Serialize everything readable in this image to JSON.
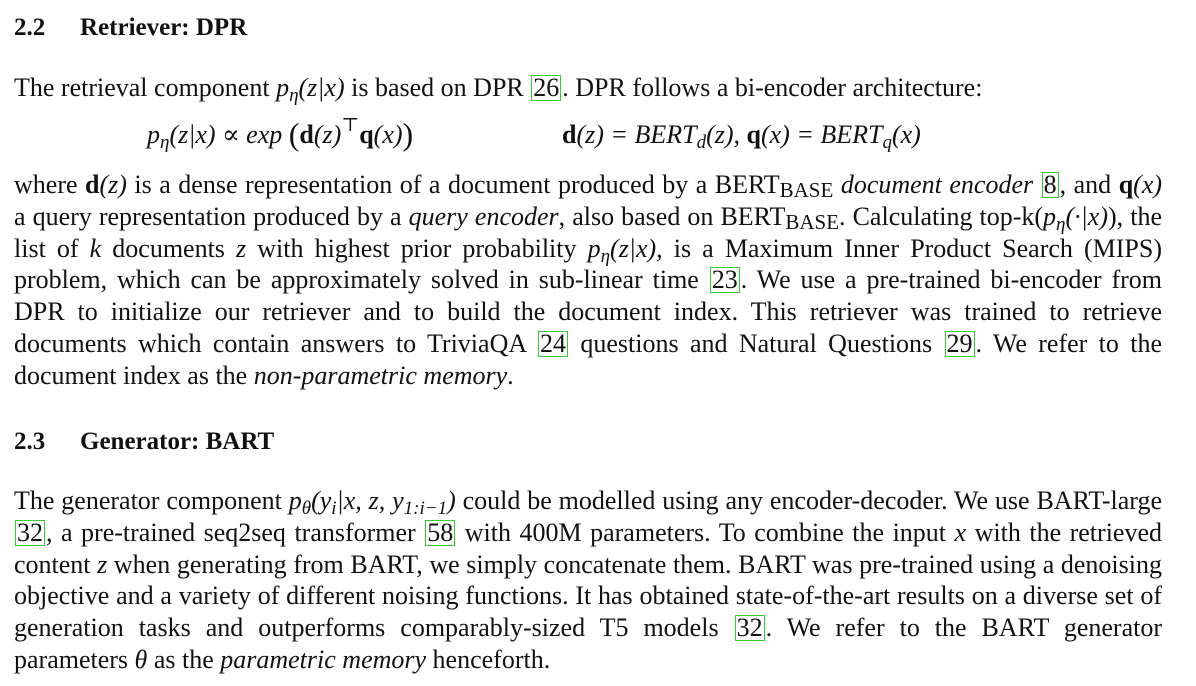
{
  "section_2_2": {
    "number": "2.2",
    "title": "Retriever: DPR"
  },
  "section_2_3": {
    "number": "2.3",
    "title": "Generator: BART"
  },
  "citations": {
    "c26": "26",
    "c8": "8",
    "c23": "23",
    "c24": "24",
    "c29": "29",
    "c32": "32",
    "c58": "58"
  },
  "p1": {
    "t1": "The retrieval component ",
    "t2": " is based on DPR ",
    "t3": ". DPR follows a bi-encoder architecture:"
  },
  "eq": {
    "left_func": "p",
    "left_sub": "η",
    "left_args": "(z|x) ∝ exp ",
    "d": "d",
    "dz": "(z)",
    "top": "⊤",
    "q": "q",
    "qx": "(x)",
    "right_d": "d",
    "right_dz": "(z) = BERT",
    "right_dsub": "d",
    "right_mid": "(z),   ",
    "right_q": "q",
    "right_qx": "(x) = BERT",
    "right_qsub": "q",
    "right_end": "(x)"
  },
  "p2": {
    "t1": "where ",
    "t2": " is a dense representation of a document produced by a BERT",
    "base1": "BASE",
    "doc_enc": "document encoder",
    "t3": ", and ",
    "t4": " a query representation produced by a ",
    "query_enc": "query encoder",
    "t5": ", also based on BERT",
    "base2": "BASE",
    "t6": ". Calculating top-k(",
    "t7": "), the list of ",
    "k": "k",
    "t8": " documents ",
    "z": "z",
    "t9": " with highest prior probability ",
    "t10": ", is a Maximum Inner Product Search (MIPS) problem, which can be approximately solved in sub-linear time ",
    "t11": ". We use a pre-trained bi-encoder from DPR to initialize our retriever and to build the document index. This retriever was trained to retrieve documents which contain answers to TriviaQA ",
    "t12": " questions and Natural Questions ",
    "t13": ". We refer to the document index as the ",
    "np_mem": "non-parametric memory",
    "t14": "."
  },
  "p3": {
    "t1": "The generator component ",
    "t2": " could be modelled using any encoder-decoder. We use BART-large ",
    "t3": ", a pre-trained seq2seq transformer ",
    "t4": " with 400M parameters. To combine the input ",
    "x": "x",
    "t5": " with the retrieved content ",
    "z": "z",
    "t6": " when generating from BART, we simply concatenate them. BART was pre-trained using a denoising objective and a variety of different noising functions. It has obtained state-of-the-art results on a diverse set of generation tasks and outperforms comparably-sized T5 models ",
    "t7": ". We refer to the BART generator parameters ",
    "theta": "θ",
    "t8": " as the ",
    "p_mem": "parametric memory",
    "t9": " henceforth."
  },
  "math": {
    "p": "p",
    "eta": "η",
    "zx": "(z|x)",
    "dotx": "(·|x)",
    "theta": "θ",
    "yi": "(y",
    "i": "i",
    "gen_args": "|x, z, y",
    "range": "1:i−1",
    "close": ")",
    "d": "d",
    "q": "q",
    "z": "(z)",
    "x": "(x)"
  }
}
